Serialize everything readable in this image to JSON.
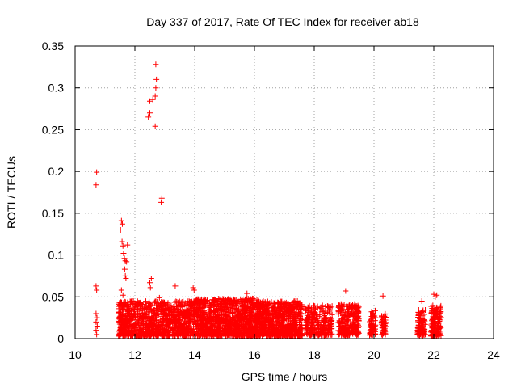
{
  "chart_data": {
    "type": "scatter",
    "title": "Day 337 of 2017, Rate Of TEC Index for receiver ab18",
    "xlabel": "GPS time / hours",
    "ylabel": "ROTI / TECUs",
    "xlim": [
      10,
      24
    ],
    "ylim": [
      0,
      0.35
    ],
    "xticks": [
      10,
      12,
      14,
      16,
      18,
      20,
      22,
      24
    ],
    "yticks": [
      0,
      0.05,
      0.1,
      0.15,
      0.2,
      0.25,
      0.3,
      0.35
    ],
    "xtick_labels": [
      "10",
      "12",
      "14",
      "16",
      "18",
      "20",
      "22",
      "24"
    ],
    "ytick_labels": [
      "0",
      "0.05",
      "0.1",
      "0.15",
      "0.2",
      "0.25",
      "0.3",
      "0.35"
    ],
    "grid": true,
    "marker": "+",
    "color": "#ff0000",
    "series": [
      {
        "points": [
          [
            10.72,
            0.199
          ],
          [
            10.7,
            0.184
          ],
          [
            10.7,
            0.063
          ],
          [
            10.72,
            0.058
          ],
          [
            10.7,
            0.03
          ],
          [
            10.73,
            0.025
          ],
          [
            10.7,
            0.02
          ],
          [
            10.74,
            0.015
          ],
          [
            10.7,
            0.01
          ],
          [
            10.72,
            0.005
          ],
          [
            11.55,
            0.141
          ],
          [
            11.58,
            0.137
          ],
          [
            11.52,
            0.13
          ],
          [
            11.57,
            0.116
          ],
          [
            11.6,
            0.111
          ],
          [
            11.75,
            0.112
          ],
          [
            11.62,
            0.102
          ],
          [
            11.65,
            0.096
          ],
          [
            11.68,
            0.093
          ],
          [
            11.72,
            0.092
          ],
          [
            11.66,
            0.083
          ],
          [
            11.68,
            0.075
          ],
          [
            11.7,
            0.072
          ],
          [
            11.55,
            0.058
          ],
          [
            11.6,
            0.052
          ],
          [
            11.5,
            0.04
          ],
          [
            11.52,
            0.03
          ],
          [
            11.6,
            0.035
          ],
          [
            11.55,
            0.012
          ],
          [
            11.7,
            0.041
          ],
          [
            12.45,
            0.265
          ],
          [
            12.5,
            0.27
          ],
          [
            12.5,
            0.284
          ],
          [
            12.6,
            0.286
          ],
          [
            12.68,
            0.29
          ],
          [
            12.7,
            0.328
          ],
          [
            12.72,
            0.31
          ],
          [
            12.7,
            0.3
          ],
          [
            12.68,
            0.254
          ],
          [
            12.9,
            0.168
          ],
          [
            12.88,
            0.163
          ],
          [
            12.55,
            0.072
          ],
          [
            12.5,
            0.067
          ],
          [
            12.52,
            0.061
          ],
          [
            12.82,
            0.049
          ],
          [
            12.85,
            0.042
          ],
          [
            13.35,
            0.063
          ],
          [
            13.95,
            0.061
          ],
          [
            13.98,
            0.058
          ],
          [
            15.75,
            0.054
          ],
          [
            19.05,
            0.057
          ],
          [
            20.3,
            0.051
          ],
          [
            21.6,
            0.045
          ],
          [
            22.0,
            0.053
          ],
          [
            22.05,
            0.05
          ],
          [
            22.1,
            0.052
          ]
        ]
      }
    ],
    "dense_clusters": [
      {
        "x_range": [
          11.45,
          14.0
        ],
        "y_range": [
          0.003,
          0.045
        ],
        "count": 1050
      },
      {
        "x_range": [
          14.0,
          16.2
        ],
        "y_range": [
          0.003,
          0.048
        ],
        "count": 1150
      },
      {
        "x_range": [
          16.2,
          17.6
        ],
        "y_range": [
          0.003,
          0.045
        ],
        "count": 700
      },
      {
        "x_range": [
          17.7,
          18.6
        ],
        "y_range": [
          0.004,
          0.04
        ],
        "count": 260
      },
      {
        "x_range": [
          18.8,
          19.5
        ],
        "y_range": [
          0.004,
          0.042
        ],
        "count": 260
      },
      {
        "x_range": [
          19.85,
          20.05
        ],
        "y_range": [
          0.004,
          0.034
        ],
        "count": 60
      },
      {
        "x_range": [
          20.25,
          20.4
        ],
        "y_range": [
          0.004,
          0.03
        ],
        "count": 50
      },
      {
        "x_range": [
          21.45,
          21.72
        ],
        "y_range": [
          0.004,
          0.035
        ],
        "count": 110
      },
      {
        "x_range": [
          21.9,
          22.25
        ],
        "y_range": [
          0.003,
          0.04
        ],
        "count": 150
      }
    ]
  }
}
